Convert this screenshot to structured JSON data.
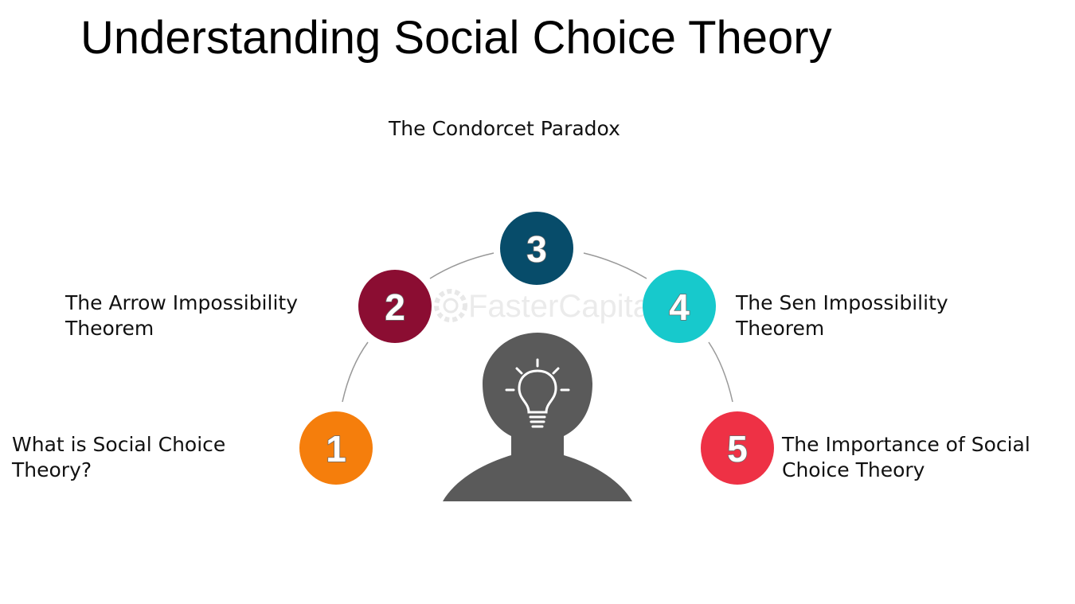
{
  "title": "Understanding Social Choice Theory",
  "steps": [
    {
      "number": "1",
      "label": "What is Social Choice Theory?",
      "color": "#f57e0c"
    },
    {
      "number": "2",
      "label": "The Arrow Impossibility Theorem",
      "color": "#8b0d32"
    },
    {
      "number": "3",
      "label": "The Condorcet Paradox",
      "color": "#074c6a"
    },
    {
      "number": "4",
      "label": "The Sen Impossibility Theorem",
      "color": "#17c9cc"
    },
    {
      "number": "5",
      "label": "The Importance of Social Choice Theory",
      "color": "#ee3145"
    }
  ],
  "watermark": "FasterCapital",
  "icons": {
    "center": "head-with-lightbulb-icon",
    "watermark": "gear-icon"
  },
  "colors": {
    "head": "#5a5a5a",
    "arc": "#999999",
    "bulb": "#ffffff"
  }
}
